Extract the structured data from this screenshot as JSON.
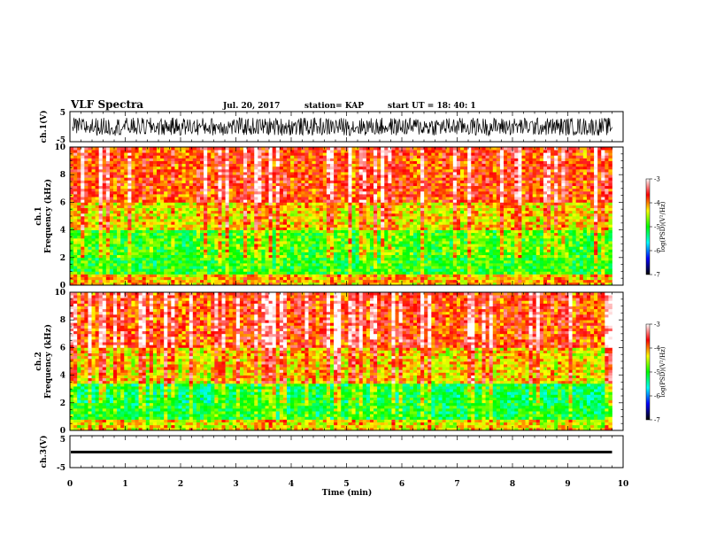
{
  "header": {
    "title": "VLF Spectra",
    "date": "Jul. 20, 2017",
    "station": "station= KAP",
    "start": "start UT =  18: 40: 1"
  },
  "chart_data": [
    {
      "type": "line",
      "panel": "ch1-waveform",
      "ylabel": "ch.1(V)",
      "ylim": [
        -5,
        5
      ],
      "yticks": [
        "5",
        "-5"
      ],
      "xlim": [
        0,
        10
      ],
      "description_of_values": "noisy waveform, amplitude mostly between -3 and 3 V",
      "series": [
        {
          "values_range": [
            -3,
            3
          ]
        }
      ],
      "color": "#000000"
    },
    {
      "type": "heatmap",
      "panel": "ch1-spectrogram",
      "ylabel": "ch.1\nFrequency (kHz)",
      "ylabel_lines": [
        "ch.1",
        "Frequency (kHz)"
      ],
      "ylim": [
        0,
        10
      ],
      "yticks": [
        "0",
        "2",
        "4",
        "6",
        "8",
        "10"
      ],
      "xlim": [
        0,
        10
      ],
      "data_end_min": 9.8,
      "colorbar": {
        "label": "log(PSD)(V²/Hz)",
        "range": [
          -7,
          -3
        ],
        "ticks": [
          "-3",
          "-4",
          "-5",
          "-6",
          "-7"
        ],
        "colors": [
          "#000000",
          "#0000ff",
          "#00ffff",
          "#00ff00",
          "#ffff00",
          "#ff0000",
          "#ffffff"
        ]
      },
      "band_profile": [
        {
          "freq_khz": [
            0,
            0.8
          ],
          "level": -4.2
        },
        {
          "freq_khz": [
            0.8,
            2.0
          ],
          "level": -5.0
        },
        {
          "freq_khz": [
            2.0,
            4.0
          ],
          "level": -4.9
        },
        {
          "freq_khz": [
            4.0,
            6.0
          ],
          "level": -4.3
        },
        {
          "freq_khz": [
            6.0,
            10.0
          ],
          "level": -3.8
        }
      ]
    },
    {
      "type": "heatmap",
      "panel": "ch2-spectrogram",
      "ylabel": "ch.2\nFrequency (kHz)",
      "ylabel_lines": [
        "ch.2",
        "Frequency (kHz)"
      ],
      "ylim": [
        0,
        10
      ],
      "yticks": [
        "0",
        "2",
        "4",
        "6",
        "8",
        "10"
      ],
      "xlim": [
        0,
        10
      ],
      "data_end_min": 9.8,
      "colorbar": {
        "label": "log(PSD)(V²/Hz)",
        "range": [
          -7,
          -3
        ],
        "ticks": [
          "-3",
          "-4",
          "-5",
          "-6",
          "-7"
        ],
        "colors": [
          "#000000",
          "#0000ff",
          "#00ffff",
          "#00ff00",
          "#ffff00",
          "#ff0000",
          "#ffffff"
        ]
      },
      "band_profile": [
        {
          "freq_khz": [
            0,
            0.8
          ],
          "level": -4.4
        },
        {
          "freq_khz": [
            0.8,
            2.0
          ],
          "level": -5.1
        },
        {
          "freq_khz": [
            2.0,
            3.5
          ],
          "level": -5.2
        },
        {
          "freq_khz": [
            3.5,
            6.0
          ],
          "level": -4.3
        },
        {
          "freq_khz": [
            6.0,
            10.0
          ],
          "level": -3.8
        }
      ]
    },
    {
      "type": "line",
      "panel": "ch3-waveform",
      "ylabel": "ch.3(V)",
      "ylim": [
        -5,
        5
      ],
      "yticks": [
        "5",
        "-5"
      ],
      "xlim": [
        0,
        10
      ],
      "series": [
        {
          "values_range": [
            -0.3,
            0.3
          ],
          "mean": 0
        }
      ],
      "color": "#000000",
      "xlabel": "Time (min)",
      "xticks": [
        "0",
        "1",
        "2",
        "3",
        "4",
        "5",
        "6",
        "7",
        "8",
        "9",
        "10"
      ]
    }
  ]
}
